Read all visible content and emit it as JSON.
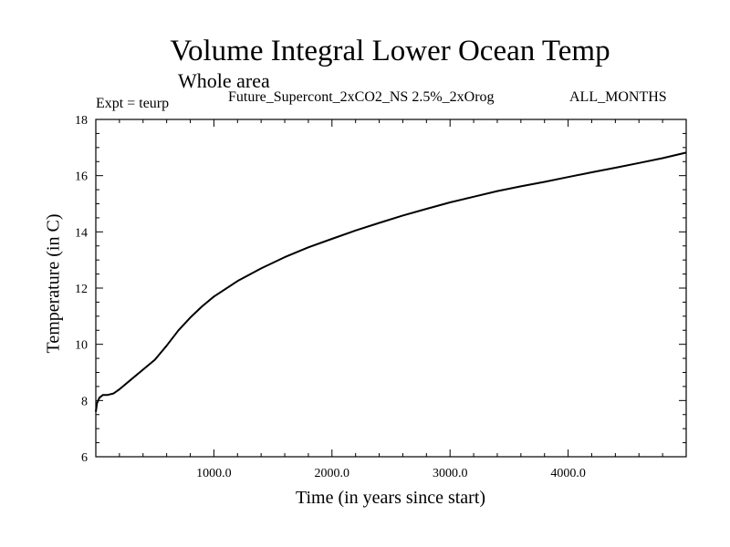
{
  "chart_data": {
    "type": "line",
    "title": "Volume Integral Lower Ocean Temp",
    "subtitle": "Whole area",
    "info_left": "Expt = teurp",
    "info_mid": "Future_Supercont_2xCO2_NS 2.5%_2xOrog",
    "info_right": "ALL_MONTHS",
    "xlabel": "Time (in years since start)",
    "ylabel": "Temperature (in C)",
    "xlim": [
      0,
      5000
    ],
    "ylim": [
      6,
      18
    ],
    "x_ticks": [
      1000,
      2000,
      3000,
      4000
    ],
    "x_tick_labels": [
      "1000.0",
      "2000.0",
      "3000.0",
      "4000.0"
    ],
    "y_ticks": [
      6,
      8,
      10,
      12,
      14,
      16,
      18
    ],
    "y_tick_labels": [
      "6",
      "8",
      "10",
      "12",
      "14",
      "16",
      "18"
    ],
    "grid": false,
    "series": [
      {
        "color": "#000000",
        "x": [
          0,
          10,
          30,
          60,
          100,
          150,
          200,
          300,
          400,
          500,
          600,
          700,
          800,
          900,
          1000,
          1200,
          1400,
          1600,
          1800,
          2000,
          2200,
          2400,
          2600,
          2800,
          3000,
          3200,
          3400,
          3600,
          3800,
          4000,
          4200,
          4400,
          4600,
          4800,
          5000
        ],
        "y": [
          7.6,
          7.9,
          8.1,
          8.2,
          8.2,
          8.25,
          8.4,
          8.75,
          9.1,
          9.45,
          9.95,
          10.5,
          10.95,
          11.35,
          11.7,
          12.25,
          12.7,
          13.1,
          13.45,
          13.75,
          14.05,
          14.32,
          14.58,
          14.82,
          15.05,
          15.25,
          15.45,
          15.62,
          15.78,
          15.95,
          16.12,
          16.28,
          16.45,
          16.62,
          16.82
        ]
      }
    ]
  }
}
